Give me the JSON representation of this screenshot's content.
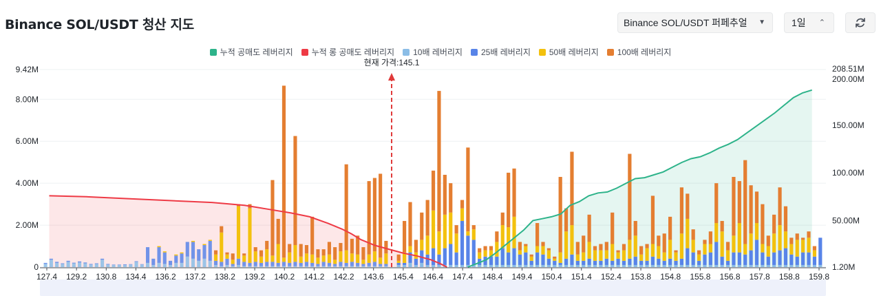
{
  "header": {
    "title": "Binance SOL/USDT 청산 지도",
    "pair_select": "Binance SOL/USDT 퍼페추얼",
    "period_select": "1일"
  },
  "colors": {
    "short": "#2db38a",
    "long": "#ee3a45",
    "lev10": "#8bbde6",
    "lev25": "#5884e8",
    "lev50": "#f3c10e",
    "lev100": "#e47e31",
    "marker": "#e03a3a"
  },
  "chart_data": {
    "type": "bar",
    "title": "Binance SOL/USDT 청산 지도",
    "legend": [
      "누적 공매도 레버리지",
      "누적 롱 공매도 레버리지",
      "10배 레버리지",
      "25배 레버리지",
      "50배 레버리지",
      "100배 레버리지"
    ],
    "current_price_label": "현재 가격:145.1",
    "current_price": 145.1,
    "x_range": [
      127.0,
      160.8
    ],
    "xticks": [
      "127.4",
      "129.2",
      "130.8",
      "134.4",
      "136.2",
      "137.2",
      "138.2",
      "139.2",
      "140.2",
      "141.2",
      "142.2",
      "143.6",
      "145.4",
      "146.4",
      "147.4",
      "148.4",
      "149.4",
      "150.4",
      "151.4",
      "152.4",
      "153.8",
      "154.8",
      "155.8",
      "156.8",
      "157.8",
      "158.8",
      "159.8"
    ],
    "left_axis": {
      "min": 0,
      "max": 9.42,
      "unit": "M",
      "ticks": [
        "0",
        "2.00M",
        "4.00M",
        "6.00M",
        "8.00M",
        "9.42M"
      ],
      "tick_values": [
        0,
        2,
        4,
        6,
        8,
        9.42
      ]
    },
    "right_axis": {
      "min": 1.2,
      "max": 208.51,
      "unit": "M",
      "ticks": [
        "1.20M",
        "50.00M",
        "100.00M",
        "150.00M",
        "200.00M",
        "208.51M"
      ],
      "tick_values": [
        1.2,
        50,
        100,
        150,
        200,
        208.51
      ]
    },
    "bars_left": [
      [
        0.15,
        0.05,
        0,
        0
      ],
      [
        0.35,
        0.05,
        0,
        0
      ],
      [
        0.2,
        0.05,
        0,
        0
      ],
      [
        0.15,
        0.03,
        0,
        0
      ],
      [
        0.25,
        0.05,
        0,
        0
      ],
      [
        0.18,
        0.03,
        0,
        0
      ],
      [
        0.22,
        0.05,
        0,
        0
      ],
      [
        0.18,
        0.04,
        0,
        0
      ],
      [
        0.12,
        0.03,
        0,
        0
      ],
      [
        0.15,
        0.03,
        0,
        0
      ],
      [
        0.35,
        0.05,
        0,
        0
      ],
      [
        0.12,
        0.03,
        0,
        0
      ],
      [
        0.1,
        0.02,
        0,
        0
      ],
      [
        0.1,
        0.02,
        0,
        0
      ],
      [
        0.1,
        0.03,
        0,
        0
      ],
      [
        0.12,
        0.02,
        0,
        0
      ],
      [
        0.25,
        0.03,
        0,
        0
      ],
      [
        0.12,
        0.02,
        0,
        0
      ],
      [
        0.2,
        0.75,
        0,
        0
      ],
      [
        0.1,
        0.3,
        0,
        0
      ],
      [
        0.2,
        0.75,
        0.05,
        0
      ],
      [
        0.15,
        0.55,
        0.05,
        0
      ],
      [
        0.1,
        0.2,
        0,
        0
      ],
      [
        0.2,
        0.35,
        0.05,
        0
      ],
      [
        0.2,
        0.45,
        0.05,
        0
      ],
      [
        0.5,
        0.7,
        0,
        0
      ],
      [
        0.4,
        0.8,
        0.05,
        0
      ],
      [
        0.3,
        0.55,
        0,
        0
      ],
      [
        0.4,
        0.65,
        0.05,
        0
      ],
      [
        0.3,
        0.95,
        0.05,
        0
      ],
      [
        0.1,
        0.2,
        0.3,
        0.2
      ],
      [
        0.05,
        0.2,
        1.4,
        0.3
      ],
      [
        0.1,
        0.3,
        0.2,
        0.1
      ],
      [
        0.05,
        0.1,
        0.2,
        0.3
      ],
      [
        0.1,
        0.3,
        2.5,
        0.1
      ],
      [
        0.05,
        0.2,
        0.3,
        0.1
      ],
      [
        0.05,
        0.15,
        2.6,
        0.2
      ],
      [
        0.05,
        0.2,
        0.5,
        0.2
      ],
      [
        0.05,
        0.15,
        0.3,
        0.3
      ],
      [
        0.05,
        0.2,
        0.6,
        0.4
      ],
      [
        0.05,
        0.2,
        0.3,
        3.6
      ],
      [
        0.05,
        0.15,
        0.9,
        1.2
      ],
      [
        0.05,
        0.2,
        0.2,
        8.2
      ],
      [
        0.05,
        0.15,
        0.5,
        0.4
      ],
      [
        0.05,
        0.2,
        0.8,
        5.2
      ],
      [
        0.05,
        0.15,
        0.3,
        0.6
      ],
      [
        0.05,
        0.2,
        0.4,
        0.4
      ],
      [
        0.05,
        0.15,
        0.4,
        1.8
      ],
      [
        0.05,
        0.1,
        0.3,
        0.4
      ],
      [
        0.05,
        0.2,
        0.3,
        0.3
      ],
      [
        0.05,
        0.15,
        0.4,
        0.6
      ],
      [
        0.05,
        0.1,
        0.2,
        0.6
      ],
      [
        0.05,
        0.2,
        0.5,
        0.4
      ],
      [
        0.05,
        0.15,
        0.6,
        4.1
      ],
      [
        0.05,
        0.2,
        0.4,
        0.7
      ],
      [
        0.05,
        0.15,
        0.4,
        0.9
      ],
      [
        0.05,
        0.1,
        0.2,
        0.6
      ],
      [
        0.05,
        0.15,
        0.4,
        3.5
      ],
      [
        0.05,
        0.2,
        0.5,
        3.5
      ],
      [
        0.05,
        0.1,
        0.3,
        4.0
      ],
      [
        0.05,
        0.1,
        0.5,
        0.6
      ]
    ],
    "bars_right": [
      [
        0.1,
        0.1,
        0.1,
        0.3
      ],
      [
        0.1,
        0.1,
        0.5,
        1.5
      ],
      [
        0.2,
        0.5,
        0.3,
        2.1
      ],
      [
        0.1,
        0.3,
        0.3,
        0.6
      ],
      [
        0.2,
        0.6,
        0.5,
        1.3
      ],
      [
        0.1,
        0.5,
        0.9,
        1.7
      ],
      [
        0.1,
        0.8,
        1.8,
        1.9
      ],
      [
        0.1,
        0.5,
        1.1,
        6.7
      ],
      [
        0.1,
        0.8,
        1.6,
        1.9
      ],
      [
        0.1,
        1.0,
        1.5,
        1.4
      ],
      [
        0.1,
        0.6,
        0.9,
        0.4
      ],
      [
        0.1,
        2.1,
        0.6,
        0.4
      ],
      [
        0.1,
        1.4,
        0.2,
        4.0
      ],
      [
        0.1,
        1.2,
        0.5,
        0.2
      ],
      [
        0.1,
        0.3,
        0.3,
        0.2
      ],
      [
        0.1,
        0.4,
        0.3,
        0.2
      ],
      [
        0.1,
        0.4,
        0.3,
        0.2
      ],
      [
        0.1,
        0.4,
        0.7,
        0.5
      ],
      [
        0.1,
        0.8,
        1.1,
        0.6
      ],
      [
        0.1,
        0.6,
        1.2,
        2.6
      ],
      [
        0.1,
        0.8,
        1.5,
        2.3
      ],
      [
        0.1,
        0.5,
        0.2,
        0.4
      ],
      [
        0.1,
        0.6,
        0.3,
        0.1
      ],
      [
        0.1,
        0.2,
        0.2,
        0.1
      ],
      [
        0.1,
        0.6,
        0.3,
        1.1
      ],
      [
        0.1,
        0.5,
        0.4,
        0.2
      ],
      [
        0.1,
        0.3,
        0.4,
        0.1
      ],
      [
        0.1,
        0.2,
        0.1,
        0.1
      ],
      [
        0.1,
        0.1,
        0.5,
        3.6
      ],
      [
        0.1,
        0.3,
        1.3,
        1.1
      ],
      [
        0.1,
        0.5,
        1.4,
        3.5
      ],
      [
        0.1,
        0.2,
        0.3,
        0.6
      ],
      [
        0.1,
        0.2,
        0.4,
        0.8
      ],
      [
        0.1,
        0.3,
        0.8,
        1.3
      ],
      [
        0.1,
        0.2,
        0.5,
        0.2
      ],
      [
        0.1,
        0.2,
        0.5,
        0.3
      ],
      [
        0.1,
        0.3,
        0.4,
        0.4
      ],
      [
        0.1,
        0.2,
        0.8,
        1.5
      ],
      [
        0.1,
        0.3,
        0.3,
        0.1
      ],
      [
        0.1,
        0.2,
        0.5,
        0.3
      ],
      [
        0.1,
        0.3,
        0.9,
        4.1
      ],
      [
        0.1,
        0.4,
        1.0,
        0.7
      ],
      [
        0.1,
        0.2,
        0.3,
        0.4
      ],
      [
        0.1,
        0.2,
        0.6,
        0.2
      ],
      [
        0.1,
        0.4,
        0.6,
        2.3
      ],
      [
        0.1,
        0.3,
        0.6,
        0.5
      ],
      [
        0.1,
        0.2,
        0.4,
        0.9
      ],
      [
        0.1,
        0.3,
        0.9,
        1.1
      ],
      [
        0.1,
        0.2,
        0.4,
        0.1
      ],
      [
        0.1,
        0.3,
        1.2,
        2.2
      ],
      [
        0.1,
        0.8,
        1.4,
        1.2
      ],
      [
        0.1,
        0.6,
        0.6,
        0.5
      ],
      [
        0.1,
        0.2,
        0.3,
        0.2
      ],
      [
        0.1,
        0.5,
        0.5,
        0.2
      ],
      [
        0.1,
        0.6,
        0.4,
        0.6
      ],
      [
        0.1,
        1.1,
        0.9,
        1.9
      ],
      [
        0.1,
        0.4,
        1.2,
        0.5
      ],
      [
        0.1,
        0.2,
        0.5,
        0.4
      ],
      [
        0.1,
        0.6,
        0.8,
        2.8
      ],
      [
        0.1,
        0.6,
        1.4,
        2.0
      ],
      [
        0.1,
        0.5,
        0.5,
        4.0
      ],
      [
        0.1,
        0.7,
        0.8,
        2.3
      ],
      [
        0.1,
        1.2,
        0.8,
        1.5
      ],
      [
        0.1,
        0.6,
        0.4,
        1.9
      ],
      [
        0.1,
        0.4,
        0.5,
        0.5
      ],
      [
        0.1,
        0.6,
        0.9,
        0.9
      ],
      [
        0.1,
        0.7,
        1.2,
        1.8
      ],
      [
        0.1,
        0.8,
        0.8,
        1.2
      ],
      [
        0.1,
        0.5,
        0.5,
        0.3
      ],
      [
        0.1,
        0.4,
        0.8,
        0.3
      ],
      [
        0.1,
        0.6,
        0.6,
        0.1
      ],
      [
        0.1,
        0.6,
        0.7,
        0.3
      ],
      [
        0.1,
        0.4,
        0.3,
        0.2
      ],
      [
        0.1,
        1.3,
        0,
        0
      ]
    ],
    "long_cumulative": {
      "x": [
        127.4,
        129,
        130.8,
        132.6,
        134.4,
        135.8,
        136.8,
        137.8,
        138.6,
        139.4,
        140,
        140.4,
        140.8,
        141.4,
        142,
        142.6,
        143.2,
        143.8,
        144.2,
        144.5
      ],
      "y": [
        76,
        75,
        73,
        71,
        69,
        66,
        62,
        58,
        54,
        47,
        41,
        36,
        30,
        24,
        20,
        16,
        13,
        9,
        5,
        1.2
      ]
    },
    "short_cumulative": {
      "x": [
        145.4,
        145.8,
        146.2,
        146.6,
        147,
        147.4,
        147.8,
        148.2,
        148.6,
        149,
        149.4,
        149.8,
        150.2,
        150.6,
        151,
        151.4,
        151.8,
        152.2,
        152.6,
        153,
        153.4,
        153.8,
        154.2,
        154.6,
        155,
        155.4,
        155.8,
        156.2,
        156.6,
        157,
        157.4,
        157.8,
        158.2,
        158.6,
        159,
        159.4,
        159.8,
        160.2
      ],
      "y": [
        1.2,
        5,
        9,
        16,
        24,
        32,
        40,
        50,
        52,
        54,
        57,
        66,
        70,
        76,
        79,
        80,
        84,
        89,
        94,
        95,
        98,
        101,
        106,
        111,
        115,
        117,
        121,
        126,
        130,
        135,
        142,
        149,
        156,
        163,
        171,
        179,
        184,
        187
      ]
    }
  }
}
